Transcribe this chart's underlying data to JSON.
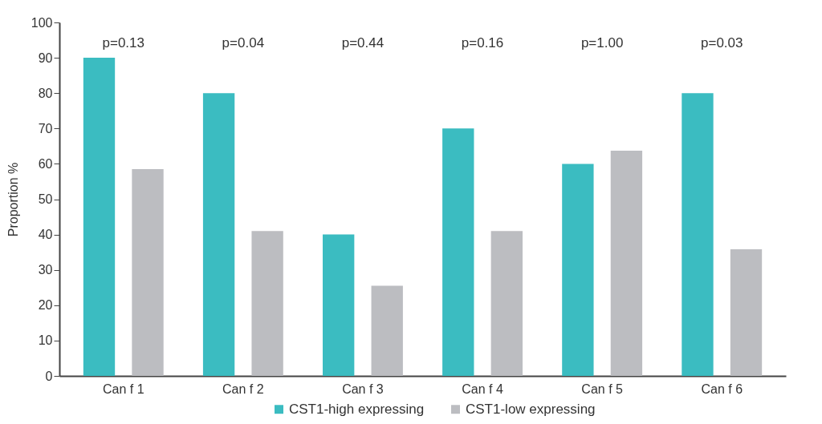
{
  "chart_data": {
    "type": "bar",
    "ylabel": "Proportion %",
    "categories": [
      "Can f 1",
      "Can f 2",
      "Can f 3",
      "Can f 4",
      "Can f 5",
      "Can f 6"
    ],
    "series": [
      {
        "name": "CST1-high expressing",
        "color": "#3bbcc1",
        "values": [
          90,
          80,
          40,
          70,
          60,
          80
        ]
      },
      {
        "name": "CST1-low expressing",
        "color": "#bcbdc1",
        "values": [
          58.5,
          41,
          25.5,
          41,
          63.7,
          35.8
        ]
      }
    ],
    "ylim": [
      0,
      100
    ],
    "yticks": [
      0,
      10,
      20,
      30,
      40,
      50,
      60,
      70,
      80,
      90,
      100
    ],
    "annotations": [
      "p=0.13",
      "p=0.04",
      "p=0.44",
      "p=0.16",
      "p=1.00",
      "p=0.03"
    ],
    "grid": false,
    "legend": "bottom"
  }
}
